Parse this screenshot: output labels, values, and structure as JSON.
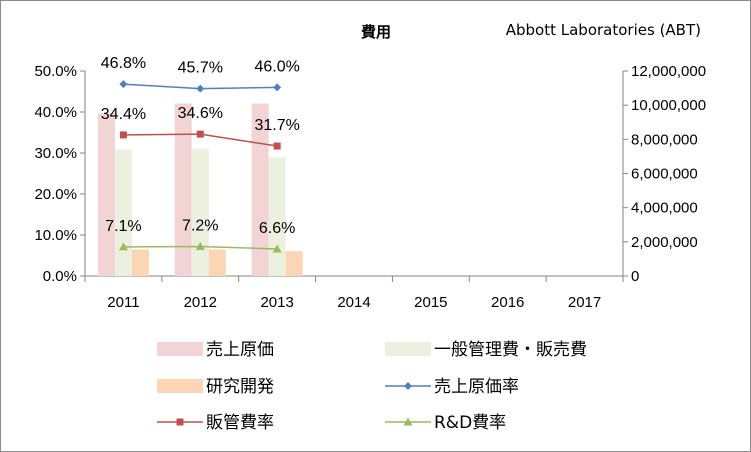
{
  "chart_data": {
    "type": "bar",
    "title": "費用",
    "subtitle": "Abbott Laboratories (ABT)",
    "categories": [
      "2011",
      "2012",
      "2013",
      "2014",
      "2015",
      "2016",
      "2017"
    ],
    "y_left": {
      "range": [
        0,
        0.5
      ],
      "ticks": [
        0,
        0.1,
        0.2,
        0.3,
        0.4,
        0.5
      ],
      "tick_labels": [
        "0.0%",
        "10.0%",
        "20.0%",
        "30.0%",
        "40.0%",
        "50.0%"
      ]
    },
    "y_right": {
      "range": [
        0,
        12000000
      ],
      "ticks": [
        0,
        2000000,
        4000000,
        6000000,
        8000000,
        10000000,
        12000000
      ],
      "tick_labels": [
        "0",
        "2,000,000",
        "4,000,000",
        "6,000,000",
        "8,000,000",
        "10,000,000",
        "12,000,000"
      ]
    },
    "bar_series": [
      {
        "name": "売上原価",
        "color": "#f2d4d4",
        "values": [
          9520000,
          10100000,
          10100000,
          null,
          null,
          null,
          null
        ]
      },
      {
        "name": "一般管理費・販売費",
        "color": "#ebf1de",
        "values": [
          7400000,
          7450000,
          6950000,
          null,
          null,
          null,
          null
        ]
      },
      {
        "name": "研究開発",
        "color": "#fcd5b4",
        "values": [
          1550000,
          1550000,
          1450000,
          null,
          null,
          null,
          null
        ]
      }
    ],
    "line_series": [
      {
        "name": "売上原価率",
        "color": "#4f81bd",
        "marker": "diamond",
        "values": [
          0.468,
          0.457,
          0.46,
          null,
          null,
          null,
          null
        ],
        "labels": [
          "46.8%",
          "45.7%",
          "46.0%"
        ]
      },
      {
        "name": "販管費率",
        "color": "#c0504d",
        "marker": "square",
        "values": [
          0.344,
          0.346,
          0.317,
          null,
          null,
          null,
          null
        ],
        "labels": [
          "34.4%",
          "34.6%",
          "31.7%"
        ]
      },
      {
        "name": "R&D費率",
        "color": "#9bbb59",
        "marker": "triangle",
        "values": [
          0.071,
          0.072,
          0.066,
          null,
          null,
          null,
          null
        ],
        "labels": [
          "7.1%",
          "7.2%",
          "6.6%"
        ]
      }
    ],
    "legend": {
      "position": "bottom",
      "items": [
        {
          "name": "売上原価",
          "kind": "bar",
          "color": "#f2d4d4"
        },
        {
          "name": "一般管理費・販売費",
          "kind": "bar",
          "color": "#ebf1de"
        },
        {
          "name": "研究開発",
          "kind": "bar",
          "color": "#fcd5b4"
        },
        {
          "name": "売上原価率",
          "kind": "line",
          "color": "#4f81bd",
          "marker": "diamond"
        },
        {
          "name": "販管費率",
          "kind": "line",
          "color": "#c0504d",
          "marker": "square"
        },
        {
          "name": "R&D費率",
          "kind": "line",
          "color": "#9bbb59",
          "marker": "triangle"
        }
      ]
    },
    "grid": false
  }
}
